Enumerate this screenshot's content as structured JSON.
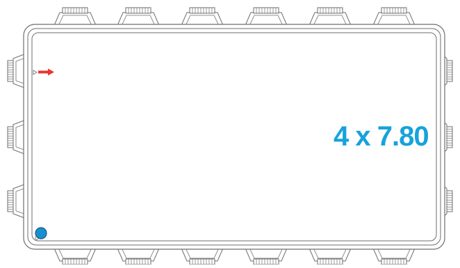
{
  "diagram": {
    "size_label": "4 x 7.80",
    "colors": {
      "outline": "#6e6e6e",
      "label": "#17a2dc",
      "arrow": "#e8362f",
      "marker": "#1a8fd0"
    },
    "icons": {
      "arrow": "arrow-right-icon",
      "marker": "circle-marker-icon"
    },
    "connectors": {
      "top_count": 6,
      "bottom_count": 6,
      "left_count": 3,
      "right_count": 3
    }
  }
}
